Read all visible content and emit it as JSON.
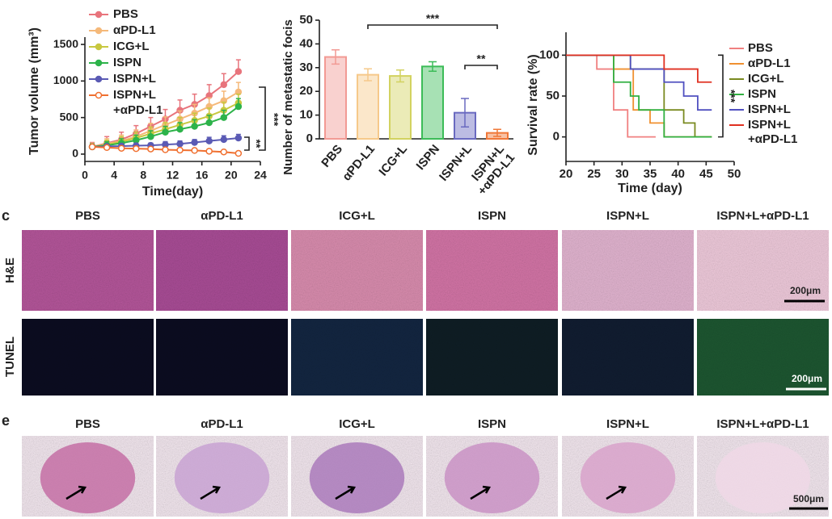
{
  "chart_data": [
    {
      "type": "line",
      "xlabel": "Time(day)",
      "ylabel": "Tumor volume (mm³)",
      "xlim": [
        0,
        24
      ],
      "xticks": [
        0,
        4,
        8,
        12,
        16,
        20,
        24
      ],
      "ylim": [
        -100,
        1600
      ],
      "yticks": [
        0,
        500,
        1000,
        1500
      ],
      "x": [
        1,
        3,
        5,
        7,
        9,
        11,
        13,
        15,
        17,
        19,
        21
      ],
      "series": [
        {
          "name": "PBS",
          "color": "#e8747c",
          "values": [
            100,
            150,
            200,
            280,
            380,
            480,
            600,
            680,
            800,
            950,
            1130
          ],
          "errors": [
            60,
            90,
            100,
            110,
            120,
            130,
            140,
            140,
            150,
            150,
            160
          ]
        },
        {
          "name": "αPD-L1",
          "color": "#f5b97a",
          "values": [
            100,
            140,
            180,
            240,
            320,
            400,
            480,
            560,
            650,
            730,
            850
          ],
          "errors": [
            50,
            70,
            80,
            90,
            100,
            110,
            110,
            120,
            120,
            130,
            130
          ]
        },
        {
          "name": "ICG+L",
          "color": "#c8c840",
          "values": [
            100,
            130,
            170,
            220,
            280,
            340,
            400,
            460,
            520,
            600,
            700
          ],
          "errors": [
            40,
            60,
            70,
            80,
            90,
            90,
            100,
            100,
            110,
            110,
            120
          ]
        },
        {
          "name": "ISPN",
          "color": "#2db34a",
          "values": [
            100,
            120,
            150,
            190,
            240,
            300,
            340,
            380,
            430,
            500,
            650
          ],
          "errors": [
            40,
            50,
            60,
            70,
            80,
            80,
            90,
            90,
            100,
            100,
            110
          ]
        },
        {
          "name": "ISPN+L",
          "color": "#5a5ab4",
          "values": [
            100,
            105,
            110,
            115,
            120,
            130,
            140,
            160,
            180,
            200,
            220
          ],
          "errors": [
            20,
            20,
            30,
            30,
            30,
            40,
            40,
            40,
            50,
            50,
            50
          ]
        },
        {
          "name": "ISPN+L+αPD-L1",
          "color": "#f07030",
          "values": [
            100,
            90,
            80,
            75,
            70,
            60,
            55,
            50,
            40,
            30,
            10
          ],
          "errors": [
            20,
            20,
            20,
            20,
            20,
            20,
            20,
            20,
            20,
            20,
            20
          ]
        }
      ],
      "annotations": [
        "***",
        "**"
      ]
    },
    {
      "type": "bar",
      "ylabel": "Number of metastatic focis",
      "categories": [
        "PBS",
        "αPD-L1",
        "ICG+L",
        "ISPN",
        "ISPN+L",
        "ISPN+L+αPD-L1"
      ],
      "values": [
        34.5,
        27,
        26.5,
        30.5,
        11,
        2.5
      ],
      "errors": [
        3,
        2.5,
        2.5,
        2,
        6,
        1.5
      ],
      "colors": [
        "#f29a94",
        "#f6c98a",
        "#d2d260",
        "#3cbc58",
        "#6a6ac0",
        "#f07838"
      ],
      "ylim": [
        0,
        50
      ],
      "yticks": [
        0,
        10,
        20,
        30,
        40,
        50
      ],
      "annotations": [
        "***",
        "**"
      ]
    },
    {
      "type": "step",
      "xlabel": "Time (day)",
      "ylabel": "Survival rate (%)",
      "xlim": [
        20,
        50
      ],
      "xticks": [
        20,
        25,
        30,
        35,
        40,
        45,
        50
      ],
      "ylim": [
        -30,
        128
      ],
      "yticks": [
        0,
        50,
        100
      ],
      "series": [
        {
          "name": "PBS",
          "color": "#f08080",
          "x": [
            20,
            25.5,
            25.5,
            28.5,
            28.5,
            31,
            31,
            36
          ],
          "values": [
            100,
            100,
            83,
            83,
            33,
            33,
            0,
            0
          ]
        },
        {
          "name": "αPD-L1",
          "color": "#f09030",
          "x": [
            20,
            28.5,
            28.5,
            32,
            32,
            35,
            35,
            37.5,
            37.5,
            46
          ],
          "values": [
            100,
            100,
            83,
            83,
            33,
            33,
            17,
            17,
            0,
            0
          ]
        },
        {
          "name": "ICG+L",
          "color": "#7a8a20",
          "x": [
            20,
            31.5,
            31.5,
            37.5,
            37.5,
            41,
            41,
            43,
            43,
            46
          ],
          "values": [
            100,
            100,
            83,
            83,
            33,
            33,
            17,
            17,
            0,
            0
          ]
        },
        {
          "name": "ISPN",
          "color": "#30b040",
          "x": [
            20,
            28.5,
            28.5,
            31.5,
            31.5,
            33,
            33,
            37.5,
            37.5,
            46
          ],
          "values": [
            100,
            100,
            67,
            67,
            50,
            50,
            33,
            33,
            0,
            0
          ]
        },
        {
          "name": "ISPN+L",
          "color": "#5050c0",
          "x": [
            20,
            31.5,
            31.5,
            37.5,
            37.5,
            41,
            41,
            43.5,
            43.5,
            46
          ],
          "values": [
            100,
            100,
            83,
            83,
            67,
            67,
            50,
            50,
            33,
            33
          ]
        },
        {
          "name": "ISPN+L+αPD-L1",
          "color": "#e03020",
          "x": [
            20,
            37.5,
            37.5,
            43.5,
            43.5,
            46
          ],
          "values": [
            100,
            100,
            83,
            83,
            67,
            67
          ]
        }
      ],
      "annotations": [
        "***"
      ]
    }
  ],
  "panels": {
    "c": {
      "label": "c",
      "columns": [
        "PBS",
        "αPD-L1",
        "ICG+L",
        "ISPN",
        "ISPN+L",
        "ISPN+L+αPD-L1"
      ],
      "rows": [
        "H&E",
        "TUNEL"
      ],
      "scale_bar": "200μm"
    },
    "e": {
      "label": "e",
      "columns": [
        "PBS",
        "αPD-L1",
        "ICG+L",
        "ISPN",
        "ISPN+L",
        "ISPN+L+αPD-L1"
      ],
      "scale_bar": "500μm"
    }
  }
}
